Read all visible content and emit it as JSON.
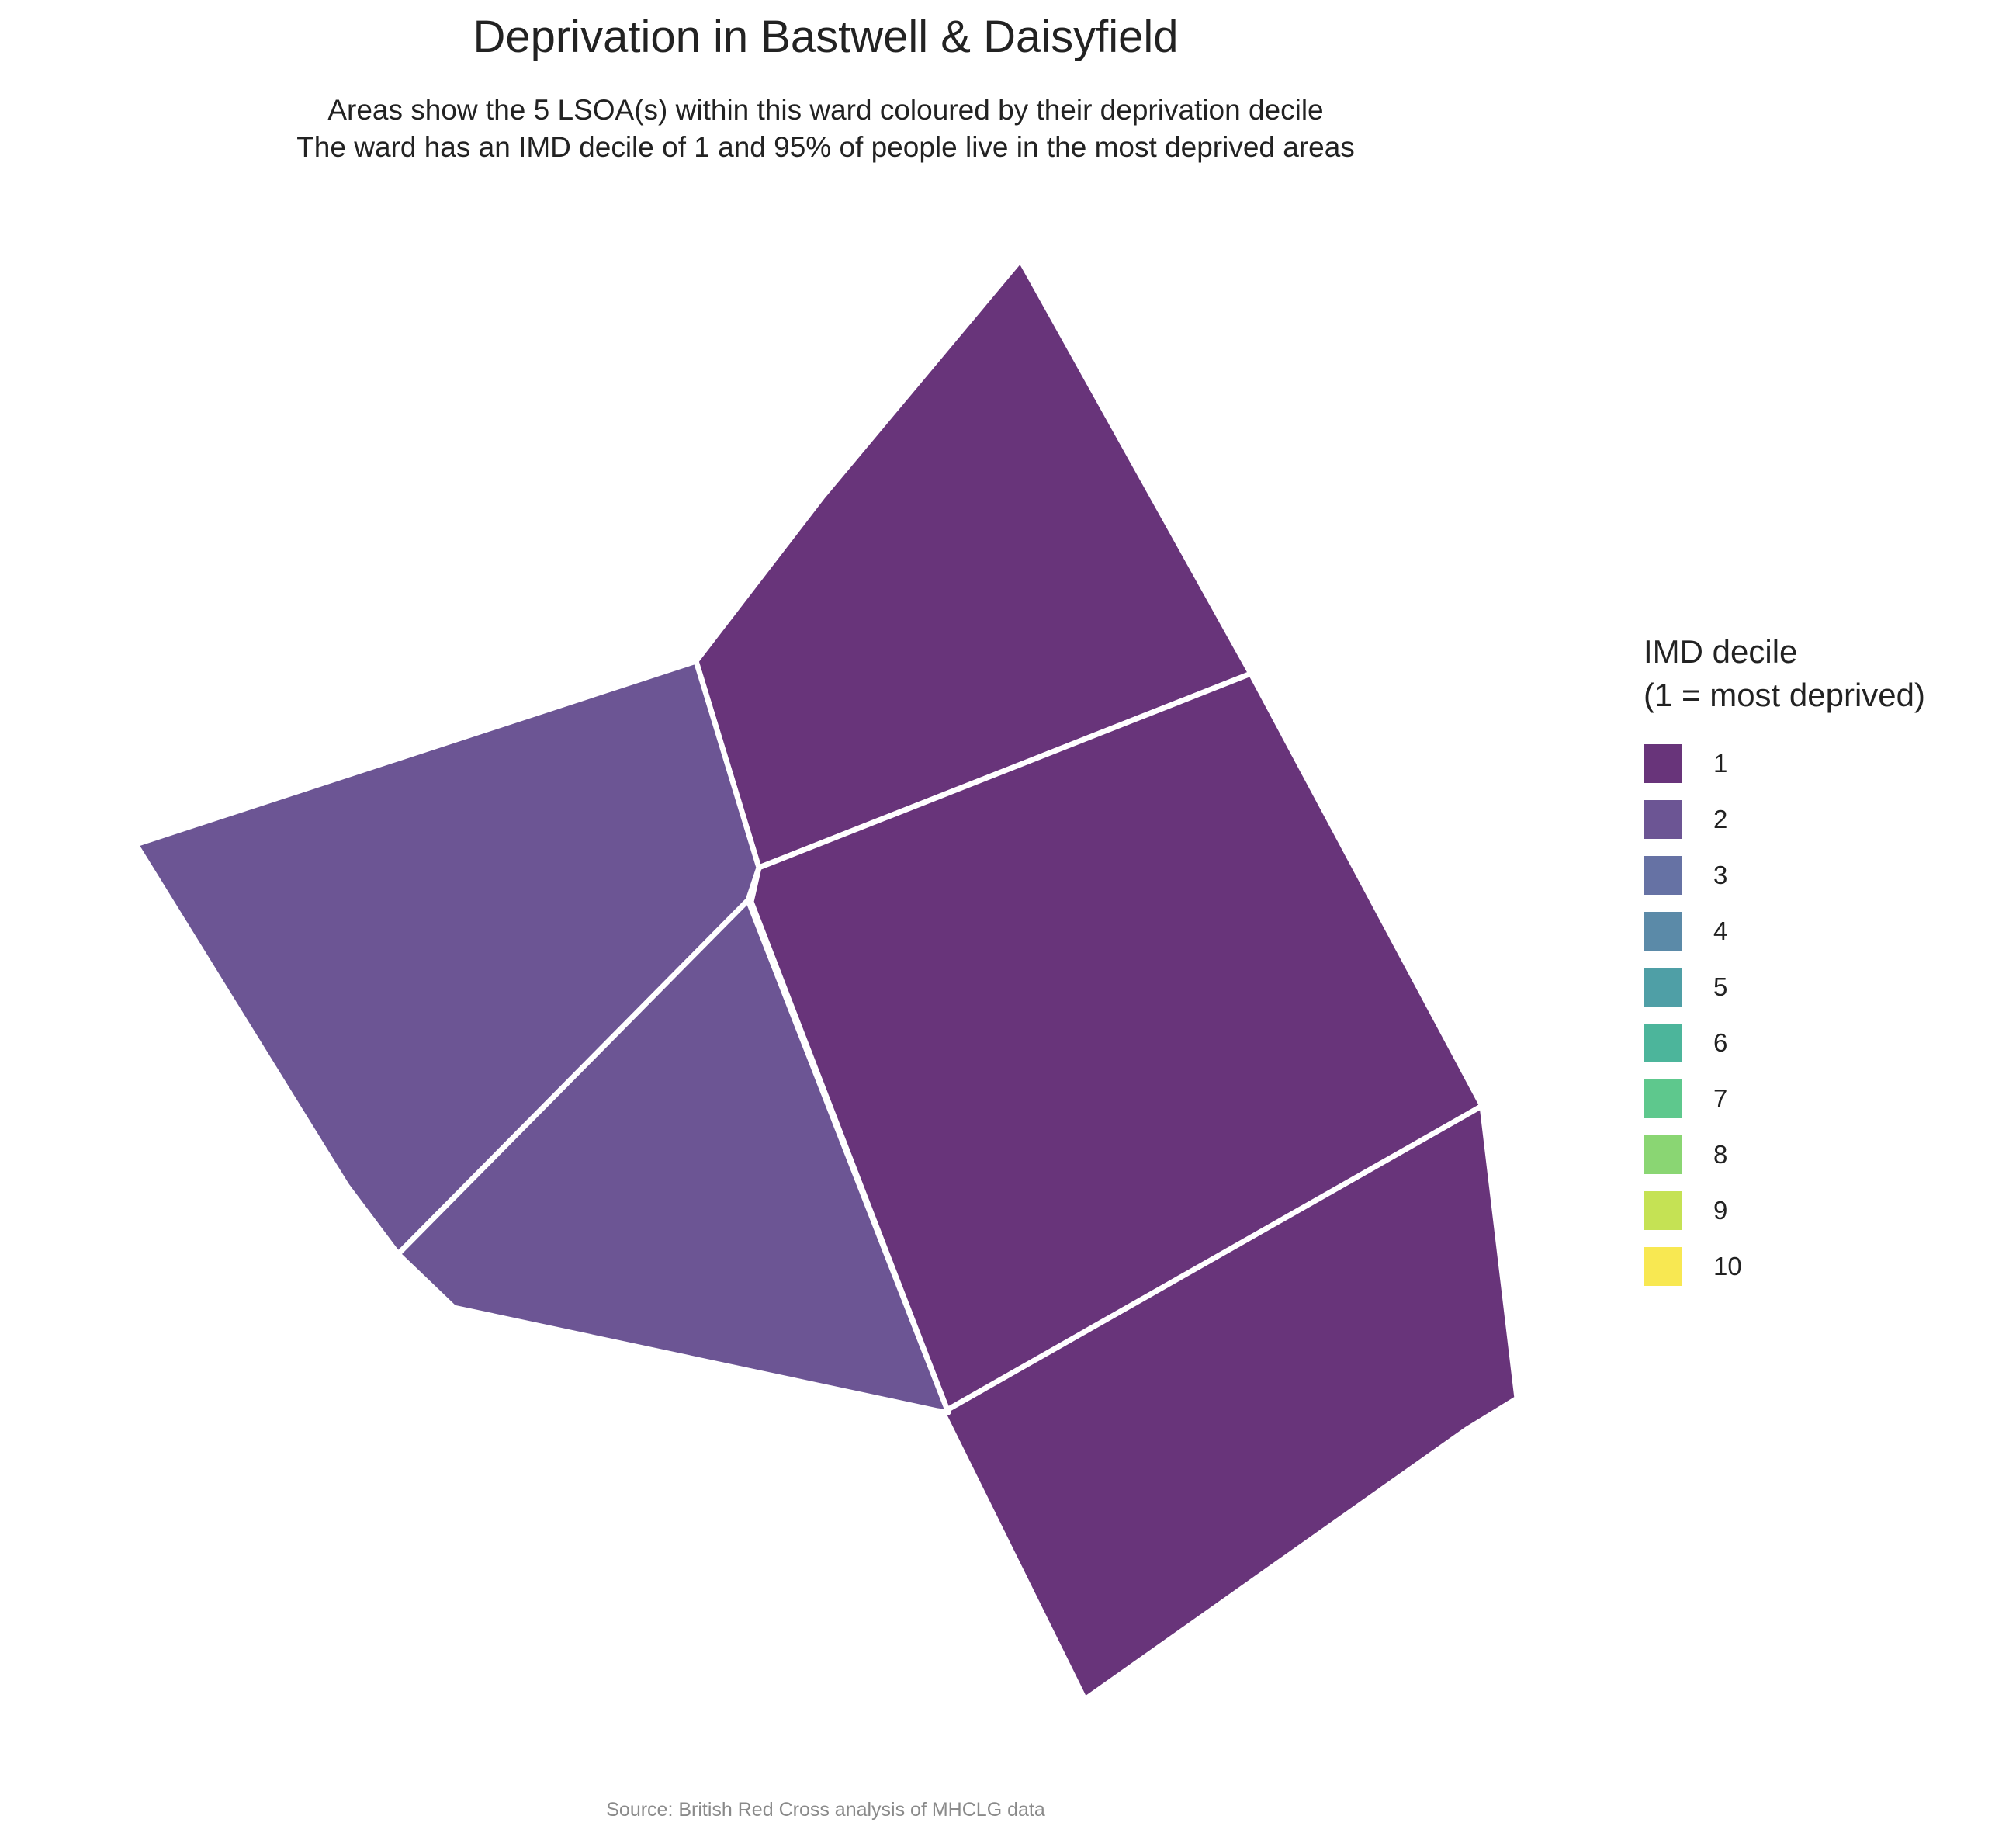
{
  "title": "Deprivation in Bastwell & Daisyfield",
  "subtitle": {
    "line1": "Areas show the 5 LSOA(s) within this ward coloured by their deprivation decile",
    "line2": "The ward has an IMD decile of 1 and 95% of people live in the most deprived areas"
  },
  "legend": {
    "title_line1": "IMD decile",
    "title_line2": "(1 = most deprived)",
    "items": [
      {
        "label": "1",
        "color": "#68347a"
      },
      {
        "label": "2",
        "color": "#6c5594"
      },
      {
        "label": "3",
        "color": "#6672a4"
      },
      {
        "label": "4",
        "color": "#5b8aa8"
      },
      {
        "label": "5",
        "color": "#4f9fa6"
      },
      {
        "label": "6",
        "color": "#4cb59b"
      },
      {
        "label": "7",
        "color": "#5ec88d"
      },
      {
        "label": "8",
        "color": "#8ad673"
      },
      {
        "label": "9",
        "color": "#c5e254"
      },
      {
        "label": "10",
        "color": "#f8e852"
      }
    ]
  },
  "areas": [
    {
      "name": "north",
      "decile": 1
    },
    {
      "name": "centre-east",
      "decile": 1
    },
    {
      "name": "south-east",
      "decile": 1
    },
    {
      "name": "west",
      "decile": 2
    },
    {
      "name": "south-centre",
      "decile": 2
    }
  ],
  "caption": "Source: British Red Cross analysis of MHCLG data"
}
